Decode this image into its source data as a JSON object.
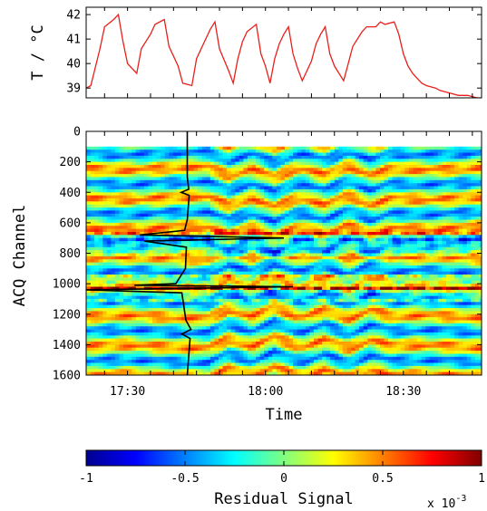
{
  "chart_data": [
    {
      "type": "line",
      "ylabel": "T / °C",
      "yticks": [
        39,
        40,
        41,
        42
      ],
      "ylim": [
        38.6,
        42.3
      ],
      "x_range": [
        "17:21",
        "18:47"
      ],
      "series": [
        {
          "color": "#e8201c",
          "x": [
            "17:21",
            "17:22",
            "17:24",
            "17:25",
            "17:27",
            "17:28",
            "17:29",
            "17:30",
            "17:32",
            "17:33",
            "17:35",
            "17:36",
            "17:38",
            "17:39",
            "17:41",
            "17:42",
            "17:44",
            "17:45",
            "17:47",
            "17:48",
            "17:49",
            "17:50",
            "17:52",
            "17:53",
            "17:54",
            "17:55",
            "17:56",
            "17:58",
            "17:59",
            "18:00",
            "18:01",
            "18:02",
            "18:03",
            "18:04",
            "18:05",
            "18:06",
            "18:07",
            "18:08",
            "18:10",
            "18:11",
            "18:12",
            "18:13",
            "18:14",
            "18:15",
            "18:17",
            "18:18",
            "18:19",
            "18:20",
            "18:21",
            "18:22",
            "18:24",
            "18:25",
            "18:26",
            "18:28",
            "18:29",
            "18:30",
            "18:31",
            "18:32",
            "18:33",
            "18:34",
            "18:35",
            "18:37",
            "18:38",
            "18:40",
            "18:42",
            "18:44",
            "18:46",
            "18:47"
          ],
          "y": [
            39.0,
            39.1,
            40.6,
            41.5,
            41.8,
            42.0,
            40.9,
            40.0,
            39.6,
            40.6,
            41.2,
            41.6,
            41.8,
            40.7,
            39.9,
            39.2,
            39.1,
            40.2,
            41.0,
            41.4,
            41.7,
            40.6,
            39.7,
            39.2,
            40.2,
            40.9,
            41.3,
            41.6,
            40.4,
            39.9,
            39.2,
            40.2,
            40.8,
            41.2,
            41.5,
            40.4,
            39.8,
            39.3,
            40.1,
            40.8,
            41.2,
            41.5,
            40.4,
            39.9,
            39.3,
            40.0,
            40.7,
            41.0,
            41.3,
            41.5,
            41.5,
            41.7,
            41.6,
            41.7,
            41.2,
            40.4,
            39.9,
            39.6,
            39.4,
            39.2,
            39.1,
            39.0,
            38.9,
            38.8,
            38.7,
            38.7,
            38.6,
            38.6
          ]
        }
      ]
    },
    {
      "type": "heatmap",
      "xlabel": "Time",
      "ylabel": "ACQ Channel",
      "xticks": [
        "17:30",
        "18:00",
        "18:30"
      ],
      "yticks": [
        0,
        200,
        400,
        600,
        800,
        1000,
        1200,
        1400,
        1600
      ],
      "ylim": [
        0,
        1600
      ],
      "x_range": [
        "17:21",
        "18:47"
      ],
      "rows_start": 100,
      "overlay_profile": {
        "baseline_time": "17:43",
        "channels": [
          0,
          100,
          300,
          380,
          400,
          420,
          580,
          650,
          680,
          700,
          720,
          760,
          900,
          1000,
          1010,
          1020,
          1040,
          1060,
          1240,
          1300,
          1330,
          1360,
          1600
        ],
        "offset_minutes": [
          0,
          0,
          0,
          0.3,
          -1.3,
          0.4,
          0,
          -0.6,
          -10.3,
          21.0,
          -9.4,
          -0.2,
          -0.4,
          -2.5,
          -11.5,
          23.0,
          -22.0,
          -1.2,
          -0.3,
          0.8,
          -1.2,
          0.6,
          0
        ]
      }
    },
    {
      "type": "colorbar",
      "title": "Residual Signal",
      "range": [
        -1,
        1
      ],
      "ticks": [
        "-1",
        "-0.5",
        "0",
        "0.5",
        "1"
      ],
      "multiplier": "x 10",
      "exponent": "-3",
      "colormap": [
        "#00008f",
        "#0000ff",
        "#00ffff",
        "#ffff00",
        "#ff0000",
        "#800000"
      ]
    }
  ]
}
